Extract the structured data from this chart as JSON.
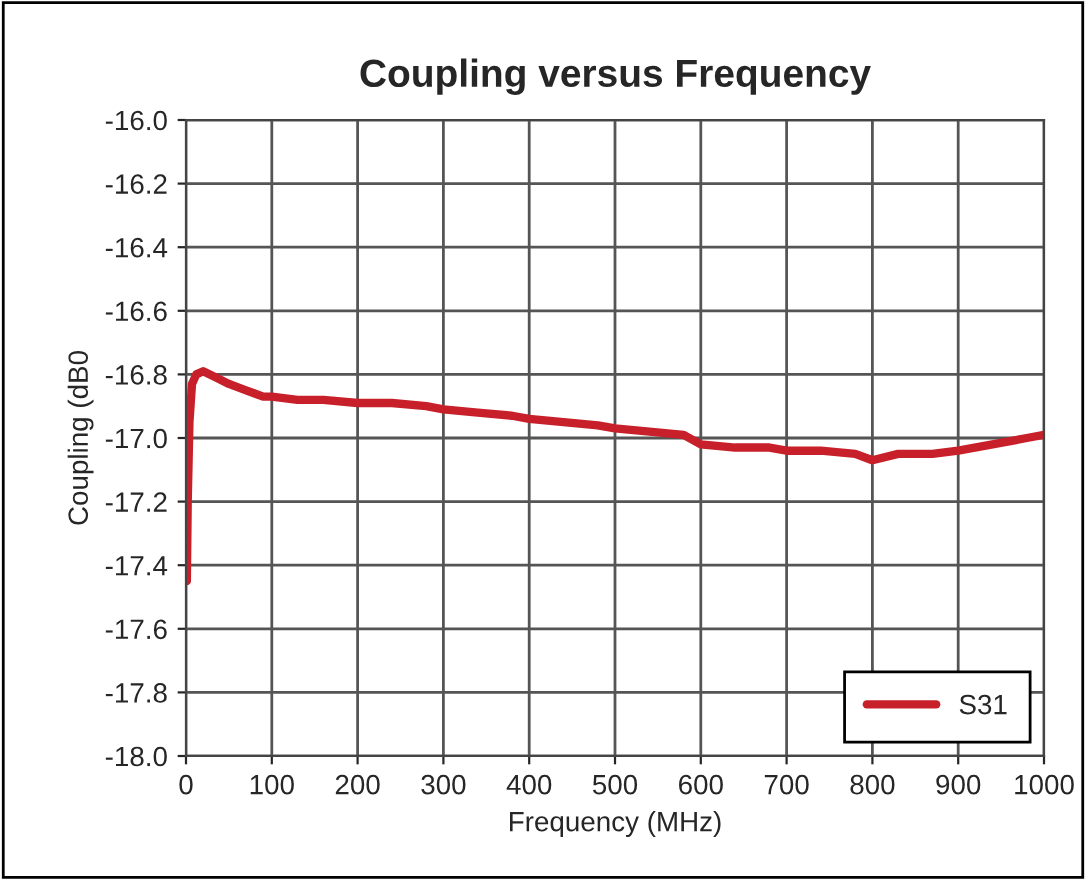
{
  "chart_data": {
    "type": "line",
    "title": "Coupling versus Frequency",
    "xlabel": "Frequency (MHz)",
    "ylabel": "Coupling (dB0",
    "x": [
      1,
      2,
      4,
      7,
      12,
      20,
      35,
      50,
      70,
      90,
      100,
      130,
      160,
      200,
      240,
      280,
      300,
      340,
      380,
      400,
      440,
      480,
      500,
      540,
      580,
      600,
      640,
      680,
      700,
      740,
      780,
      800,
      830,
      870,
      900,
      940,
      980,
      1000
    ],
    "series": [
      {
        "name": "S31",
        "color": "#c8202a",
        "values": [
          -17.45,
          -17.2,
          -16.95,
          -16.83,
          -16.8,
          -16.79,
          -16.81,
          -16.83,
          -16.85,
          -16.87,
          -16.87,
          -16.88,
          -16.88,
          -16.89,
          -16.89,
          -16.9,
          -16.91,
          -16.92,
          -16.93,
          -16.94,
          -16.95,
          -16.96,
          -16.97,
          -16.98,
          -16.99,
          -17.02,
          -17.03,
          -17.03,
          -17.04,
          -17.04,
          -17.05,
          -17.07,
          -17.05,
          -17.05,
          -17.04,
          -17.02,
          -17.0,
          -16.99
        ]
      }
    ],
    "xlim": [
      0,
      1000
    ],
    "xticks": [
      0,
      100,
      200,
      300,
      400,
      500,
      600,
      700,
      800,
      900,
      1000
    ],
    "ylim": [
      -18.0,
      -16.0
    ],
    "yticks": [
      {
        "value": -18.0,
        "label": "-18.0"
      },
      {
        "value": -17.8,
        "label": "-17.8"
      },
      {
        "value": -17.6,
        "label": "-17.6"
      },
      {
        "value": -17.4,
        "label": "-17.4"
      },
      {
        "value": -17.2,
        "label": "-17.2"
      },
      {
        "value": -17.0,
        "label": "-17.0"
      },
      {
        "value": -16.8,
        "label": "-16.8"
      },
      {
        "value": -16.6,
        "label": "-16.6"
      },
      {
        "value": -16.4,
        "label": "-16.4"
      },
      {
        "value": -16.2,
        "label": "-16.2"
      },
      {
        "value": -16.0,
        "label": "-16.0"
      }
    ],
    "grid": true,
    "legend": "bottom right",
    "marker": "none",
    "line_style": "solid"
  }
}
